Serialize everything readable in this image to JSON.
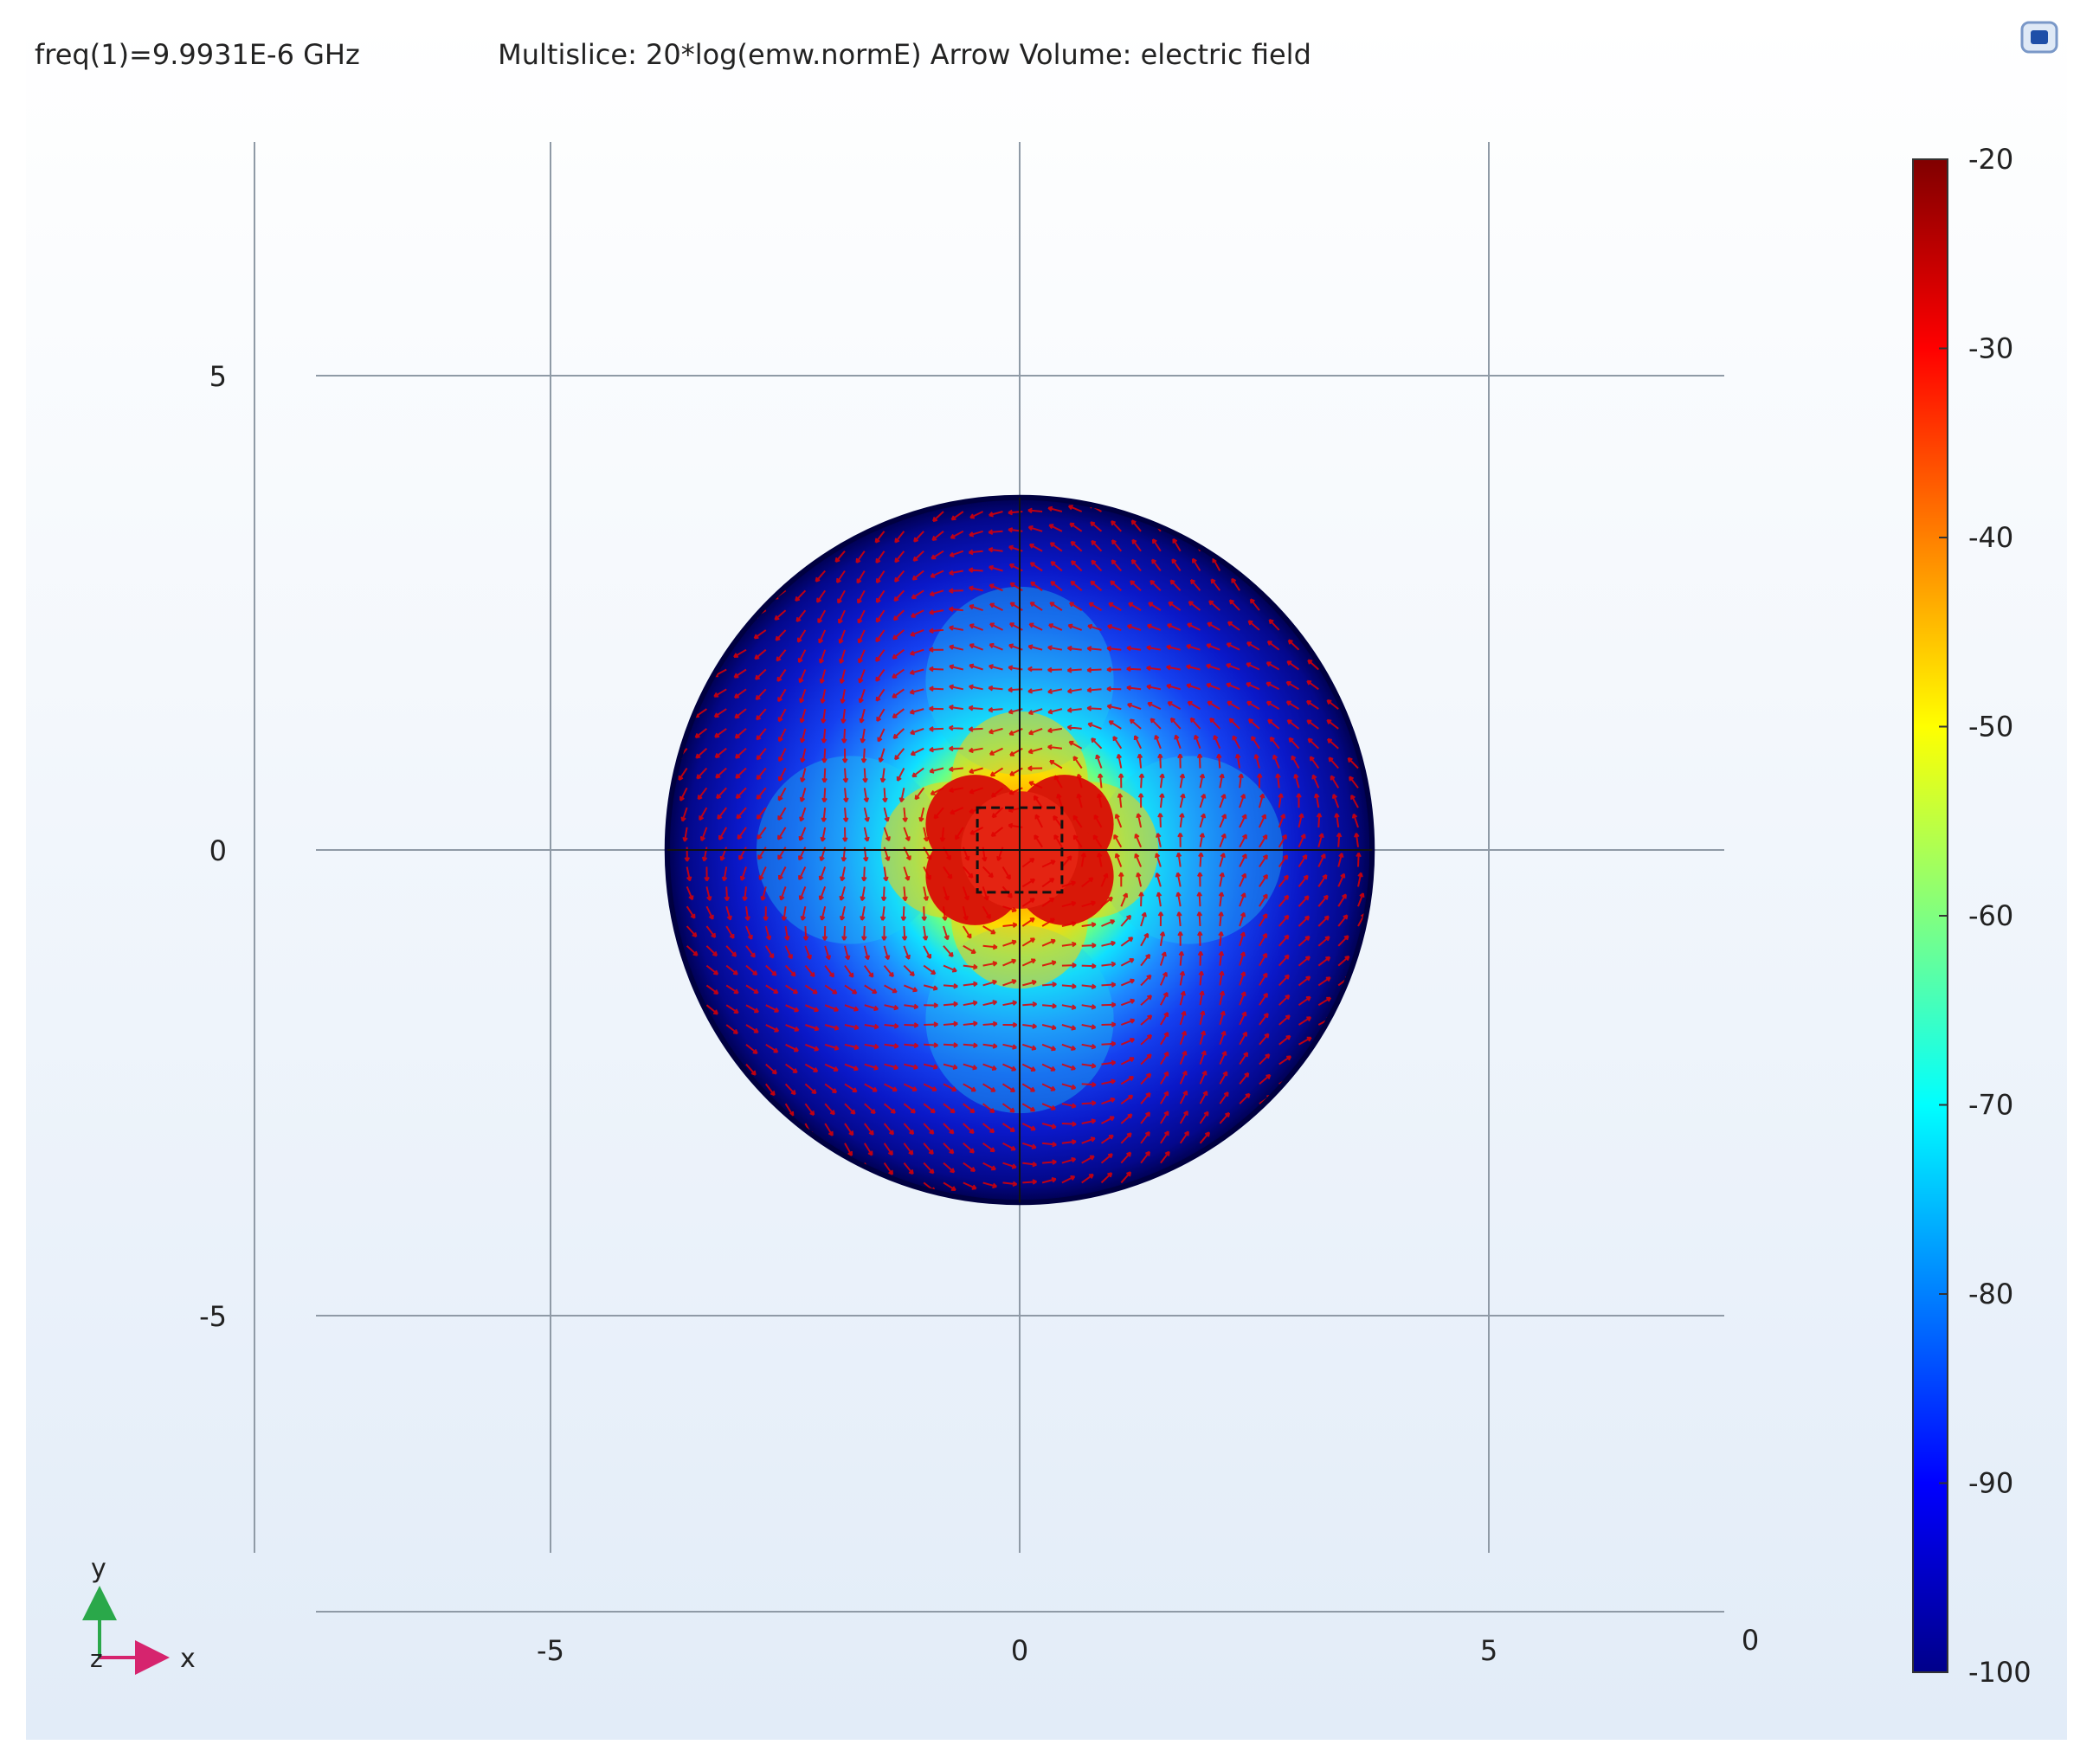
{
  "chart_data": {
    "type": "heatmap",
    "header_left": "freq(1)=9.9931E-6 GHz",
    "title": "Multislice: 20*log(emw.normE)  Arrow Volume: electric field",
    "xlabel": "",
    "ylabel": "",
    "x_ticks": [
      "-5",
      "0",
      "5"
    ],
    "y_ticks": [
      "5",
      "0",
      "-5"
    ],
    "z_tick": "0",
    "xlim": [
      -8.5,
      7.5
    ],
    "ylim": [
      -7.5,
      7.5
    ],
    "colorbar": {
      "min": -100,
      "max": -20,
      "ticks": [
        "-20",
        "-30",
        "-40",
        "-50",
        "-60",
        "-70",
        "-80",
        "-90",
        "-100"
      ],
      "colormap": "jet"
    },
    "domain": {
      "shape": "circle",
      "center": [
        0,
        0
      ],
      "radius": 7.5
    },
    "inner_box": {
      "x": [
        -0.9,
        0.9
      ],
      "y": [
        -0.9,
        0.9
      ]
    },
    "axis_triad": {
      "x_label": "x",
      "y_label": "y",
      "z_label": "z",
      "x_color": "#d6246e",
      "y_color": "#2aa84a"
    },
    "arrow_color": "#e00000"
  }
}
